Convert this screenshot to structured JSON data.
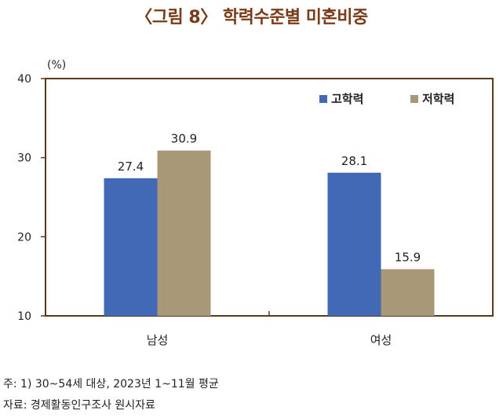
{
  "figure": {
    "title": "〈그림 8〉 학력수준별 미혼비중",
    "note": "주: 1) 30~54세 대상, 2023년 1~11월 평균",
    "source": "자료: 경제활동인구조사 원시자료"
  },
  "chart_data": {
    "type": "bar",
    "title": "〈그림 8〉 학력수준별 미혼비중",
    "ylabel": "(%)",
    "xlabel": "",
    "ylim": [
      10,
      40
    ],
    "yticks": [
      "10",
      "20",
      "30",
      "40"
    ],
    "categories": [
      "남성",
      "여성"
    ],
    "series": [
      {
        "name": "고학력",
        "values": [
          27.4,
          28.1
        ],
        "labels": [
          "27.4",
          "28.1"
        ],
        "color": "#4169b6"
      },
      {
        "name": "저학력",
        "values": [
          30.9,
          15.9
        ],
        "labels": [
          "30.9",
          "15.9"
        ],
        "color": "#a89878"
      }
    ],
    "legend_position": "top-right",
    "grid": false,
    "frame_color": "#5a3a1e"
  }
}
